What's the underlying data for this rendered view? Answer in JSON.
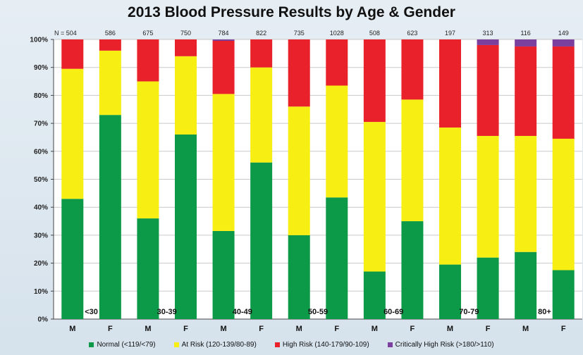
{
  "chart_data": {
    "type": "bar",
    "stacked": true,
    "title": "2013 Blood Pressure Results by Age & Gender",
    "n_prefix": "N = ",
    "categories": [
      "M",
      "F",
      "M",
      "F",
      "M",
      "F",
      "M",
      "F",
      "M",
      "F",
      "M",
      "F",
      "M",
      "F"
    ],
    "age_groups": [
      "<30",
      "30-39",
      "40-49",
      "50-59",
      "60-69",
      "70-79",
      "80+"
    ],
    "n_values": [
      504,
      586,
      675,
      750,
      784,
      822,
      735,
      1028,
      508,
      623,
      197,
      313,
      116,
      149
    ],
    "ylim": [
      0,
      100
    ],
    "yticks": [
      "0%",
      "10%",
      "20%",
      "30%",
      "40%",
      "50%",
      "60%",
      "70%",
      "80%",
      "90%",
      "100%"
    ],
    "series": [
      {
        "name": "Normal (<119/<79)",
        "color": "#0c9a48",
        "values": [
          43,
          73,
          36,
          66,
          31.5,
          56,
          30,
          43.5,
          17,
          35,
          19.5,
          22,
          24,
          17.5
        ]
      },
      {
        "name": "At Risk (120-139/80-89)",
        "color": "#f7ee13",
        "values": [
          46.5,
          23,
          49,
          28,
          49,
          34,
          46,
          40,
          53.5,
          43.5,
          49,
          43.5,
          41.5,
          47
        ]
      },
      {
        "name": "High Risk (140-179/90-109)",
        "color": "#e8212a",
        "values": [
          10.5,
          4,
          15,
          6,
          19,
          10,
          24,
          16.5,
          29.5,
          21.5,
          31.5,
          32.5,
          32,
          33
        ]
      },
      {
        "name": "Critically High Risk (>180/>110)",
        "color": "#7b3f9e",
        "values": [
          0,
          0,
          0,
          0,
          0.5,
          0,
          0,
          0,
          0,
          0,
          0,
          2,
          2.5,
          2.5
        ]
      }
    ],
    "legend_position": "bottom",
    "grid": true
  }
}
